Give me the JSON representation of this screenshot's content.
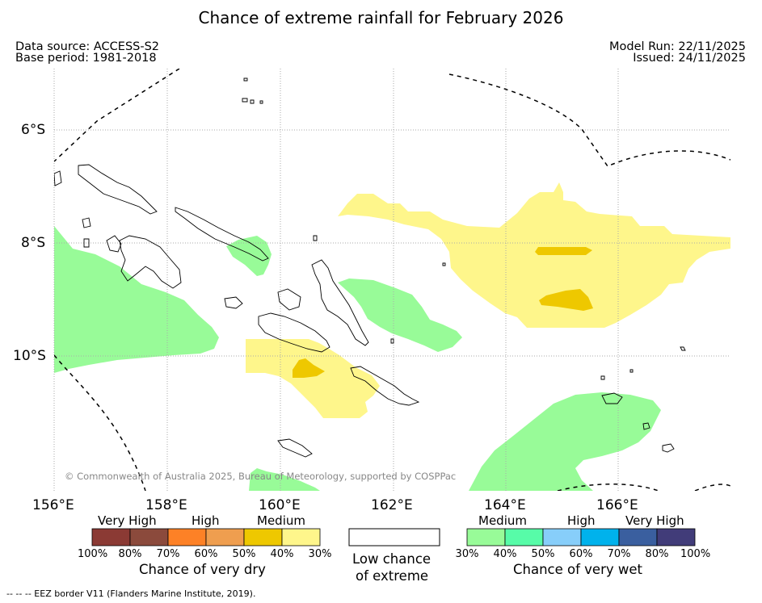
{
  "title": "Chance of extreme rainfall for February 2026",
  "header": {
    "data_source": "Data source: ACCESS-S2",
    "base_period": "Base period: 1981-2018",
    "model_run": "Model Run: 22/11/2025",
    "issued": "Issued: 24/11/2025"
  },
  "map": {
    "lat_labels": [
      "6°S",
      "8°S",
      "10°S"
    ],
    "lon_labels": [
      "156°E",
      "158°E",
      "160°E",
      "162°E",
      "164°E",
      "166°E"
    ],
    "copyright": "© Commonwealth of Australia 2025, Bureau of Meteorology, supported by COSPPac"
  },
  "legend": {
    "dry": {
      "categories": [
        "Very High",
        "High",
        "Medium"
      ],
      "colors": [
        "#8b3a34",
        "#8b4a3c",
        "#fd8126",
        "#ef9e4f",
        "#eec800",
        "#fef68b"
      ],
      "ticks": [
        "100%",
        "80%",
        "70%",
        "60%",
        "50%",
        "40%",
        "30%"
      ],
      "caption": "Chance of very dry"
    },
    "neutral": {
      "color": "#ffffff",
      "caption_line1": "Low chance",
      "caption_line2": "of extreme"
    },
    "wet": {
      "categories": [
        "Medium",
        "High",
        "Very High"
      ],
      "colors": [
        "#98fb98",
        "#57fca8",
        "#87cefa",
        "#00b2ec",
        "#3a5f9f",
        "#413c79"
      ],
      "ticks": [
        "30%",
        "40%",
        "50%",
        "60%",
        "70%",
        "80%",
        "100%"
      ],
      "caption": "Chance of very wet"
    }
  },
  "footer": "--  --  -- EEZ border V11 (Flanders Marine Institute, 2019).",
  "colors": {
    "medium_dry": "#fef68b",
    "medium_dry_50": "#eec800",
    "medium_wet": "#98fb98",
    "grid": "#aaaaaa"
  }
}
